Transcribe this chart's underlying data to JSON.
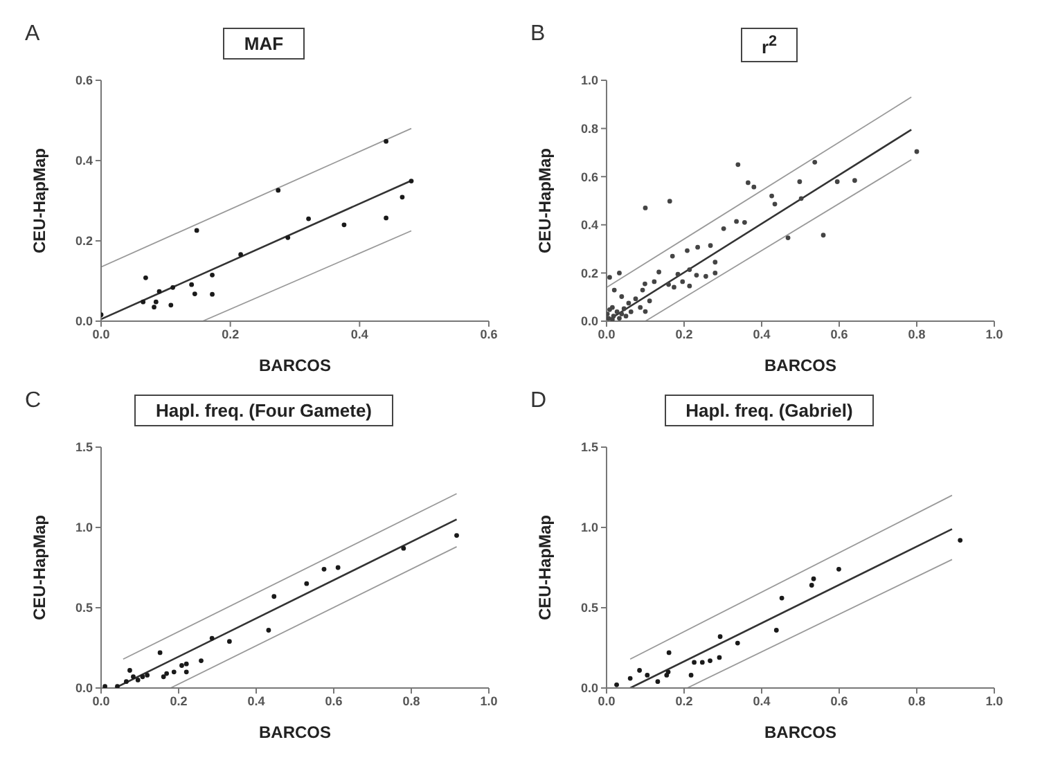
{
  "chart_data": [
    {
      "type": "scatter",
      "title": "MAF",
      "xlabel": "BARCOS",
      "ylabel": "CEU-HapMap",
      "annotations": [
        "A"
      ],
      "xlim": [
        0,
        0.6
      ],
      "ylim": [
        0,
        0.6
      ],
      "xticks": [
        {
          "value": 0,
          "label": "0.0"
        },
        {
          "value": 0.2,
          "label": "0.2"
        },
        {
          "value": 0.4,
          "label": "0.4"
        },
        {
          "value": 0.6,
          "label": "0.6"
        }
      ],
      "yticks": [
        {
          "value": 0,
          "label": "0.0"
        },
        {
          "value": 0.2,
          "label": "0.2"
        },
        {
          "value": 0.4,
          "label": "0.4"
        },
        {
          "value": 0.6,
          "label": "0.6"
        }
      ],
      "grid": false,
      "series": [
        {
          "type": "scatter",
          "marker": "circle",
          "color": "#1a1a1a",
          "x": [
            0,
            0.065,
            0.069,
            0.082,
            0.085,
            0.09,
            0.108,
            0.111,
            0.14,
            0.145,
            0.148,
            0.172,
            0.172,
            0.216,
            0.274,
            0.289,
            0.321,
            0.376,
            0.441,
            0.466,
            0.441,
            0.48
          ],
          "values": [
            0.016,
            0.048,
            0.108,
            0.035,
            0.048,
            0.074,
            0.04,
            0.084,
            0.091,
            0.068,
            0.226,
            0.115,
            0.067,
            0.166,
            0.326,
            0.208,
            0.255,
            0.24,
            0.257,
            0.309,
            0.448,
            0.349
          ]
        },
        {
          "type": "line",
          "marker": "none",
          "color": "#333333",
          "x": [
            0,
            0.48
          ],
          "values": [
            0.005,
            0.35
          ]
        },
        {
          "type": "line",
          "marker": "none",
          "color": "#999999",
          "x": [
            0,
            0.48
          ],
          "values": [
            0.135,
            0.48
          ]
        },
        {
          "type": "line",
          "marker": "none",
          "color": "#999999",
          "x": [
            0.157,
            0.48
          ],
          "values": [
            0,
            0.225
          ]
        }
      ]
    },
    {
      "type": "scatter",
      "title": "r$^{2}$",
      "xlabel": "BARCOS",
      "ylabel": "CEU-HapMap",
      "annotations": [
        "B"
      ],
      "xlim": [
        0,
        1
      ],
      "ylim": [
        0,
        1
      ],
      "xticks": [
        {
          "value": 0,
          "label": "0.0"
        },
        {
          "value": 0.2,
          "label": "0.2"
        },
        {
          "value": 0.4,
          "label": "0.4"
        },
        {
          "value": 0.6,
          "label": "0.6"
        },
        {
          "value": 0.8,
          "label": "0.8"
        },
        {
          "value": 1,
          "label": "1.0"
        }
      ],
      "yticks": [
        {
          "value": 0,
          "label": "0.0"
        },
        {
          "value": 0.2,
          "label": "0.2"
        },
        {
          "value": 0.4,
          "label": "0.4"
        },
        {
          "value": 0.6,
          "label": "0.6"
        },
        {
          "value": 0.8,
          "label": "0.8"
        },
        {
          "value": 1,
          "label": "1.0"
        }
      ],
      "grid": false,
      "series": [
        {
          "type": "scatter",
          "marker": "circle",
          "color": "#444444",
          "x": [
            0.1,
            0.163,
            0.339,
            0.365,
            0.38,
            0.426,
            0.434,
            0.335,
            0.356,
            0.302,
            0.498,
            0.537,
            0.595,
            0.64,
            0.8,
            0.559,
            0.502,
            0.468,
            0.17,
            0.208,
            0.235,
            0.268,
            0.28,
            0.184,
            0.135,
            0.214,
            0.232,
            0.256,
            0.28,
            0.196,
            0.214,
            0.16,
            0.174,
            0.123,
            0.099,
            0.093,
            0.075,
            0.057,
            0.033,
            0.008,
            0.02,
            0.039,
            0.015,
            0.027,
            0.039,
            0.05,
            0.063,
            0.005,
            0.015,
            0.002,
            0.033,
            0.087,
            0.111,
            0.1,
            0.018,
            0.045,
            0.008
          ],
          "values": [
            0.47,
            0.498,
            0.65,
            0.575,
            0.557,
            0.52,
            0.486,
            0.414,
            0.41,
            0.384,
            0.579,
            0.66,
            0.579,
            0.584,
            0.704,
            0.357,
            0.509,
            0.346,
            0.27,
            0.293,
            0.307,
            0.314,
            0.245,
            0.195,
            0.204,
            0.214,
            0.191,
            0.186,
            0.2,
            0.164,
            0.146,
            0.152,
            0.141,
            0.164,
            0.155,
            0.129,
            0.093,
            0.075,
            0.2,
            0.182,
            0.129,
            0.102,
            0.057,
            0.039,
            0.03,
            0.021,
            0.039,
            0.012,
            0.007,
            0.03,
            0.012,
            0.057,
            0.084,
            0.04,
            0.021,
            0.052,
            0.048
          ]
        },
        {
          "type": "line",
          "marker": "none",
          "color": "#333333",
          "x": [
            0,
            0.786
          ],
          "values": [
            0,
            0.795
          ]
        },
        {
          "type": "line",
          "marker": "none",
          "color": "#999999",
          "x": [
            0,
            0.786
          ],
          "values": [
            0.14,
            0.93
          ]
        },
        {
          "type": "line",
          "marker": "none",
          "color": "#999999",
          "x": [
            0.1,
            0.786
          ],
          "values": [
            0,
            0.67
          ]
        }
      ]
    },
    {
      "type": "scatter",
      "title": "Hapl. freq. (Four Gamete)",
      "xlabel": "BARCOS",
      "ylabel": "CEU-HapMap",
      "annotations": [
        "C"
      ],
      "xlim": [
        0,
        1
      ],
      "ylim": [
        0,
        1.5
      ],
      "xticks": [
        {
          "value": 0,
          "label": "0.0"
        },
        {
          "value": 0.2,
          "label": "0.2"
        },
        {
          "value": 0.4,
          "label": "0.4"
        },
        {
          "value": 0.6,
          "label": "0.6"
        },
        {
          "value": 0.8,
          "label": "0.8"
        },
        {
          "value": 1,
          "label": "1.0"
        }
      ],
      "yticks": [
        {
          "value": 0,
          "label": "0.0"
        },
        {
          "value": 0.5,
          "label": "0.5"
        },
        {
          "value": 1,
          "label": "1.0"
        },
        {
          "value": 1.5,
          "label": "1.5"
        }
      ],
      "grid": false,
      "series": [
        {
          "type": "scatter",
          "marker": "circle",
          "color": "#1a1a1a",
          "x": [
            0.01,
            0.042,
            0.065,
            0.074,
            0.083,
            0.095,
            0.107,
            0.119,
            0.152,
            0.161,
            0.169,
            0.188,
            0.208,
            0.22,
            0.22,
            0.258,
            0.286,
            0.331,
            0.432,
            0.446,
            0.53,
            0.575,
            0.611,
            0.78,
            0.917
          ],
          "values": [
            0.01,
            0.01,
            0.04,
            0.11,
            0.07,
            0.05,
            0.07,
            0.08,
            0.22,
            0.07,
            0.09,
            0.1,
            0.14,
            0.1,
            0.15,
            0.17,
            0.31,
            0.29,
            0.36,
            0.57,
            0.65,
            0.74,
            0.75,
            0.87,
            0.95
          ]
        },
        {
          "type": "line",
          "marker": "none",
          "color": "#333333",
          "x": [
            0.036,
            0.917
          ],
          "values": [
            0,
            1.05
          ]
        },
        {
          "type": "line",
          "marker": "none",
          "color": "#999999",
          "x": [
            0.057,
            0.917
          ],
          "values": [
            0.18,
            1.21
          ]
        },
        {
          "type": "line",
          "marker": "none",
          "color": "#999999",
          "x": [
            0.179,
            0.917
          ],
          "values": [
            0,
            0.88
          ]
        }
      ]
    },
    {
      "type": "scatter",
      "title": "Hapl. freq. (Gabriel)",
      "xlabel": "BARCOS",
      "ylabel": "CEU-HapMap",
      "annotations": [
        "D"
      ],
      "xlim": [
        0,
        1
      ],
      "ylim": [
        0,
        1.5
      ],
      "xticks": [
        {
          "value": 0,
          "label": "0.0"
        },
        {
          "value": 0.2,
          "label": "0.2"
        },
        {
          "value": 0.4,
          "label": "0.4"
        },
        {
          "value": 0.6,
          "label": "0.6"
        },
        {
          "value": 0.8,
          "label": "0.8"
        },
        {
          "value": 1,
          "label": "1.0"
        }
      ],
      "yticks": [
        {
          "value": 0,
          "label": "0.0"
        },
        {
          "value": 0.5,
          "label": "0.5"
        },
        {
          "value": 1,
          "label": "1.0"
        },
        {
          "value": 1.5,
          "label": "1.5"
        }
      ],
      "grid": false,
      "series": [
        {
          "type": "scatter",
          "marker": "circle",
          "color": "#1a1a1a",
          "x": [
            0.026,
            0.061,
            0.085,
            0.105,
            0.132,
            0.155,
            0.159,
            0.161,
            0.218,
            0.226,
            0.247,
            0.267,
            0.291,
            0.293,
            0.338,
            0.438,
            0.452,
            0.529,
            0.534,
            0.599,
            0.912
          ],
          "values": [
            0.02,
            0.06,
            0.11,
            0.08,
            0.04,
            0.08,
            0.1,
            0.22,
            0.08,
            0.16,
            0.16,
            0.17,
            0.19,
            0.32,
            0.28,
            0.36,
            0.56,
            0.64,
            0.68,
            0.74,
            0.92
          ]
        },
        {
          "type": "line",
          "marker": "none",
          "color": "#333333",
          "x": [
            0.061,
            0.891
          ],
          "values": [
            0,
            0.99
          ]
        },
        {
          "type": "line",
          "marker": "none",
          "color": "#999999",
          "x": [
            0.061,
            0.891
          ],
          "values": [
            0.18,
            1.2
          ]
        },
        {
          "type": "line",
          "marker": "none",
          "color": "#999999",
          "x": [
            0.208,
            0.891
          ],
          "values": [
            0,
            0.8
          ]
        }
      ]
    }
  ]
}
